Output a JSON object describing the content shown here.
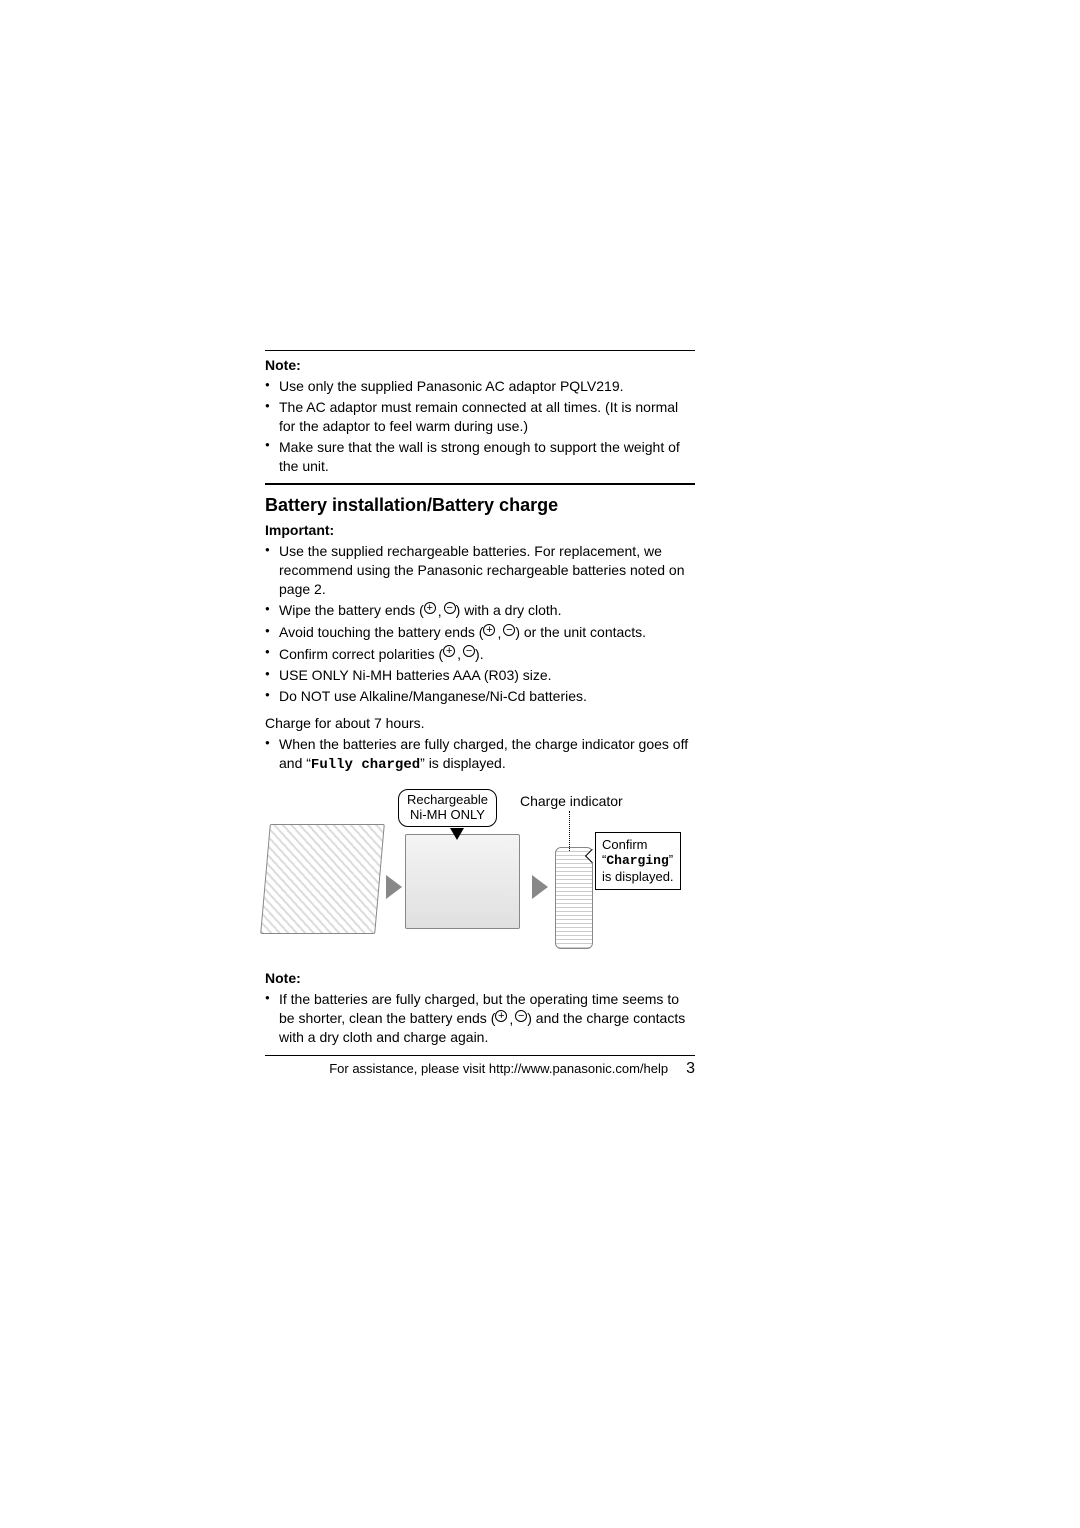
{
  "note1": {
    "heading": "Note:",
    "items": [
      "Use only the supplied Panasonic AC adaptor PQLV219.",
      "The AC adaptor must remain connected at all times. (It is normal for the adaptor to feel warm during use.)",
      "Make sure that the wall is strong enough to support the weight of the unit."
    ]
  },
  "section": {
    "title": "Battery installation/Battery charge",
    "important_heading": "Important:",
    "important_items": {
      "i1": "Use the supplied rechargeable batteries. For replacement, we recommend using the Panasonic rechargeable batteries noted on page 2.",
      "i2_pre": "Wipe the battery ends (",
      "i2_post": ") with a dry cloth.",
      "i3_pre": "Avoid touching the battery ends (",
      "i3_post": ") or the unit contacts.",
      "i4_pre": "Confirm correct polarities (",
      "i4_post": ").",
      "i5": "USE ONLY Ni-MH batteries AAA (R03) size.",
      "i6": "Do NOT use Alkaline/Manganese/Ni-Cd batteries."
    },
    "charge_line": "Charge for about 7 hours.",
    "charge_bullet_pre": "When the batteries are fully charged, the charge indicator goes off and “",
    "charge_bullet_code": "Fully charged",
    "charge_bullet_post": "” is displayed."
  },
  "figure": {
    "badge_line1": "Rechargeable",
    "badge_line2": "Ni-MH ONLY",
    "charge_indicator_label": "Charge indicator",
    "confirm_line1": "Confirm",
    "confirm_code_pre": "“",
    "confirm_code": "Charging",
    "confirm_code_post": "”",
    "confirm_line3": "is displayed."
  },
  "note2": {
    "heading": "Note:",
    "item_pre": "If the batteries are fully charged, but the operating time seems to be shorter, clean the battery ends (",
    "item_post": ") and the charge contacts with a dry cloth and charge again."
  },
  "footer": {
    "assist": "For assistance, please visit http://www.panasonic.com/help",
    "page": "3"
  },
  "symbols": {
    "plus": "+",
    "minus": "−",
    "comma": ", "
  }
}
